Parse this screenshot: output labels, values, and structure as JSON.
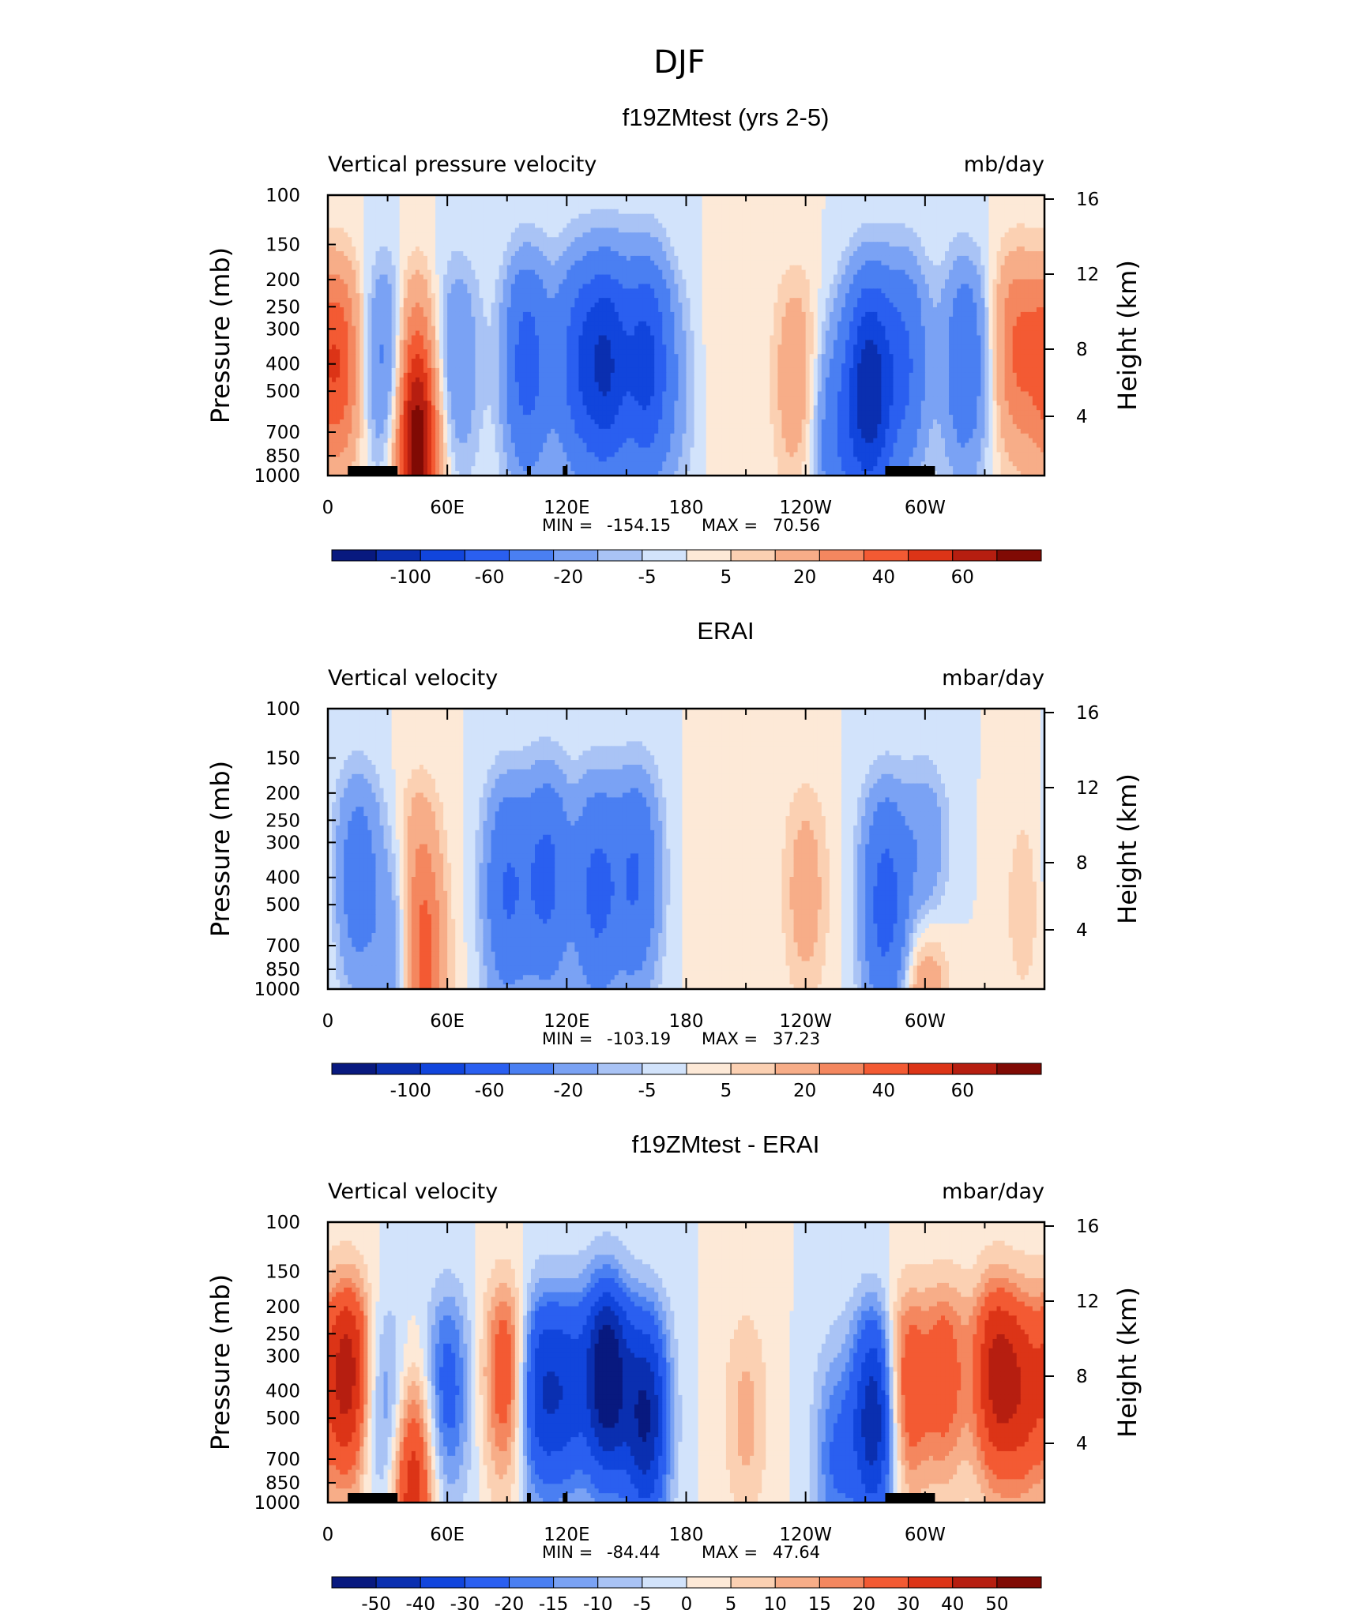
{
  "figure_title": "DJF",
  "colors": {
    "palette_neg": [
      "#08197f",
      "#0a2fb0",
      "#1145dc",
      "#2a5ff0",
      "#4a7ff2",
      "#7aa2f4",
      "#a9c3f5",
      "#d2e3fb"
    ],
    "palette_pos": [
      "#fde9d7",
      "#fbd0b2",
      "#f7ad88",
      "#f4875f",
      "#f35a33",
      "#dc3417",
      "#b61e10",
      "#800a04"
    ]
  },
  "chart_data": [
    {
      "type": "heatmap",
      "title": "f19ZMtest (yrs 2-5)",
      "left_label": "Vertical pressure velocity",
      "right_label": "mb/day",
      "ylabel": "Pressure (mb)",
      "y2label": "Height (km)",
      "y_ticks": [
        "100",
        "150",
        "200",
        "250",
        "300",
        "400",
        "500",
        "700",
        "850",
        "1000"
      ],
      "y2_ticks": [
        "16",
        "12",
        "8",
        "4"
      ],
      "x_ticks": [
        "0",
        "60E",
        "120E",
        "180",
        "120W",
        "60W"
      ],
      "min_label": "MIN =",
      "min_value": "-154.15",
      "max_label": "MAX =",
      "max_value": "70.56",
      "colorbar_labels": [
        "-100",
        "-60",
        "-20",
        "-5",
        "5",
        "20",
        "40",
        "60"
      ],
      "colorbar_levels": 16,
      "features": [
        {
          "lon": 0,
          "lev": 400,
          "v": 20
        },
        {
          "lon": 8,
          "lev": 400,
          "v": 25
        },
        {
          "lon": 30,
          "lev": 400,
          "v": -30
        },
        {
          "lon": 42,
          "lev": 400,
          "v": 25
        },
        {
          "lon": 45,
          "lev": 900,
          "v": 60
        },
        {
          "lon": 65,
          "lev": 400,
          "v": -20
        },
        {
          "lon": 100,
          "lev": 400,
          "v": -50
        },
        {
          "lon": 125,
          "lev": 400,
          "v": -45
        },
        {
          "lon": 140,
          "lev": 400,
          "v": -75
        },
        {
          "lon": 160,
          "lev": 400,
          "v": -65
        },
        {
          "lon": 175,
          "lev": 500,
          "v": -10
        },
        {
          "lon": 200,
          "lev": 400,
          "v": 5
        },
        {
          "lon": 235,
          "lev": 450,
          "v": 18
        },
        {
          "lon": 255,
          "lev": 750,
          "v": -30
        },
        {
          "lon": 272,
          "lev": 500,
          "v": -95
        },
        {
          "lon": 290,
          "lev": 400,
          "v": -40
        },
        {
          "lon": 320,
          "lev": 400,
          "v": -35
        },
        {
          "lon": 345,
          "lev": 350,
          "v": 28
        }
      ],
      "terrain": [
        [
          10,
          35
        ],
        [
          100,
          102
        ],
        [
          118,
          120
        ],
        [
          280,
          305
        ]
      ]
    },
    {
      "type": "heatmap",
      "title": "ERAI",
      "left_label": "Vertical velocity",
      "right_label": "mbar/day",
      "ylabel": "Pressure (mb)",
      "y2label": "Height (km)",
      "y_ticks": [
        "100",
        "150",
        "200",
        "250",
        "300",
        "400",
        "500",
        "700",
        "850",
        "1000"
      ],
      "y2_ticks": [
        "16",
        "12",
        "8",
        "4"
      ],
      "x_ticks": [
        "0",
        "60E",
        "120E",
        "180",
        "120W",
        "60W"
      ],
      "min_label": "MIN =",
      "min_value": "-103.19",
      "max_label": "MAX =",
      "max_value": "37.23",
      "colorbar_labels": [
        "-100",
        "-60",
        "-20",
        "-5",
        "5",
        "20",
        "40",
        "60"
      ],
      "colorbar_levels": 16,
      "features": [
        {
          "lon": 15,
          "lev": 400,
          "v": -30
        },
        {
          "lon": 35,
          "lev": 700,
          "v": -20
        },
        {
          "lon": 45,
          "lev": 400,
          "v": 18
        },
        {
          "lon": 48,
          "lev": 900,
          "v": 30
        },
        {
          "lon": 90,
          "lev": 450,
          "v": -40
        },
        {
          "lon": 110,
          "lev": 400,
          "v": -45
        },
        {
          "lon": 135,
          "lev": 450,
          "v": -45
        },
        {
          "lon": 155,
          "lev": 400,
          "v": -40
        },
        {
          "lon": 195,
          "lev": 350,
          "v": 5
        },
        {
          "lon": 240,
          "lev": 450,
          "v": 15
        },
        {
          "lon": 280,
          "lev": 500,
          "v": -50
        },
        {
          "lon": 300,
          "lev": 400,
          "v": -25
        },
        {
          "lon": 300,
          "lev": 950,
          "v": 28
        },
        {
          "lon": 350,
          "lev": 500,
          "v": 8
        }
      ],
      "terrain": []
    },
    {
      "type": "heatmap",
      "title": "f19ZMtest - ERAI",
      "left_label": "Vertical velocity",
      "right_label": "mbar/day",
      "ylabel": "Pressure (mb)",
      "y2label": "Height (km)",
      "y_ticks": [
        "100",
        "150",
        "200",
        "250",
        "300",
        "400",
        "500",
        "700",
        "850",
        "1000"
      ],
      "y2_ticks": [
        "16",
        "12",
        "8",
        "4"
      ],
      "x_ticks": [
        "0",
        "60E",
        "120E",
        "180",
        "120W",
        "60W"
      ],
      "min_label": "MIN =",
      "min_value": "-84.44",
      "max_label": "MAX =",
      "max_value": "47.64",
      "colorbar_labels": [
        "-50",
        "-40",
        "-30",
        "-20",
        "-15",
        "-10",
        "-5",
        "0",
        "5",
        "10",
        "15",
        "20",
        "30",
        "40",
        "50"
      ],
      "colorbar_levels": 16,
      "features": [
        {
          "lon": 10,
          "lev": 350,
          "v": 45
        },
        {
          "lon": 30,
          "lev": 500,
          "v": -20
        },
        {
          "lon": 42,
          "lev": 850,
          "v": 40
        },
        {
          "lon": 60,
          "lev": 400,
          "v": -25
        },
        {
          "lon": 90,
          "lev": 350,
          "v": 30
        },
        {
          "lon": 105,
          "lev": 400,
          "v": -35
        },
        {
          "lon": 120,
          "lev": 400,
          "v": -30
        },
        {
          "lon": 140,
          "lev": 350,
          "v": -60
        },
        {
          "lon": 160,
          "lev": 500,
          "v": -50
        },
        {
          "lon": 210,
          "lev": 500,
          "v": 12
        },
        {
          "lon": 255,
          "lev": 700,
          "v": -20
        },
        {
          "lon": 275,
          "lev": 500,
          "v": -50
        },
        {
          "lon": 290,
          "lev": 400,
          "v": 30
        },
        {
          "lon": 310,
          "lev": 350,
          "v": 25
        },
        {
          "lon": 335,
          "lev": 350,
          "v": 40
        },
        {
          "lon": 350,
          "lev": 400,
          "v": 30
        }
      ],
      "terrain": [
        [
          10,
          35
        ],
        [
          100,
          102
        ],
        [
          118,
          120
        ],
        [
          280,
          305
        ]
      ]
    }
  ]
}
